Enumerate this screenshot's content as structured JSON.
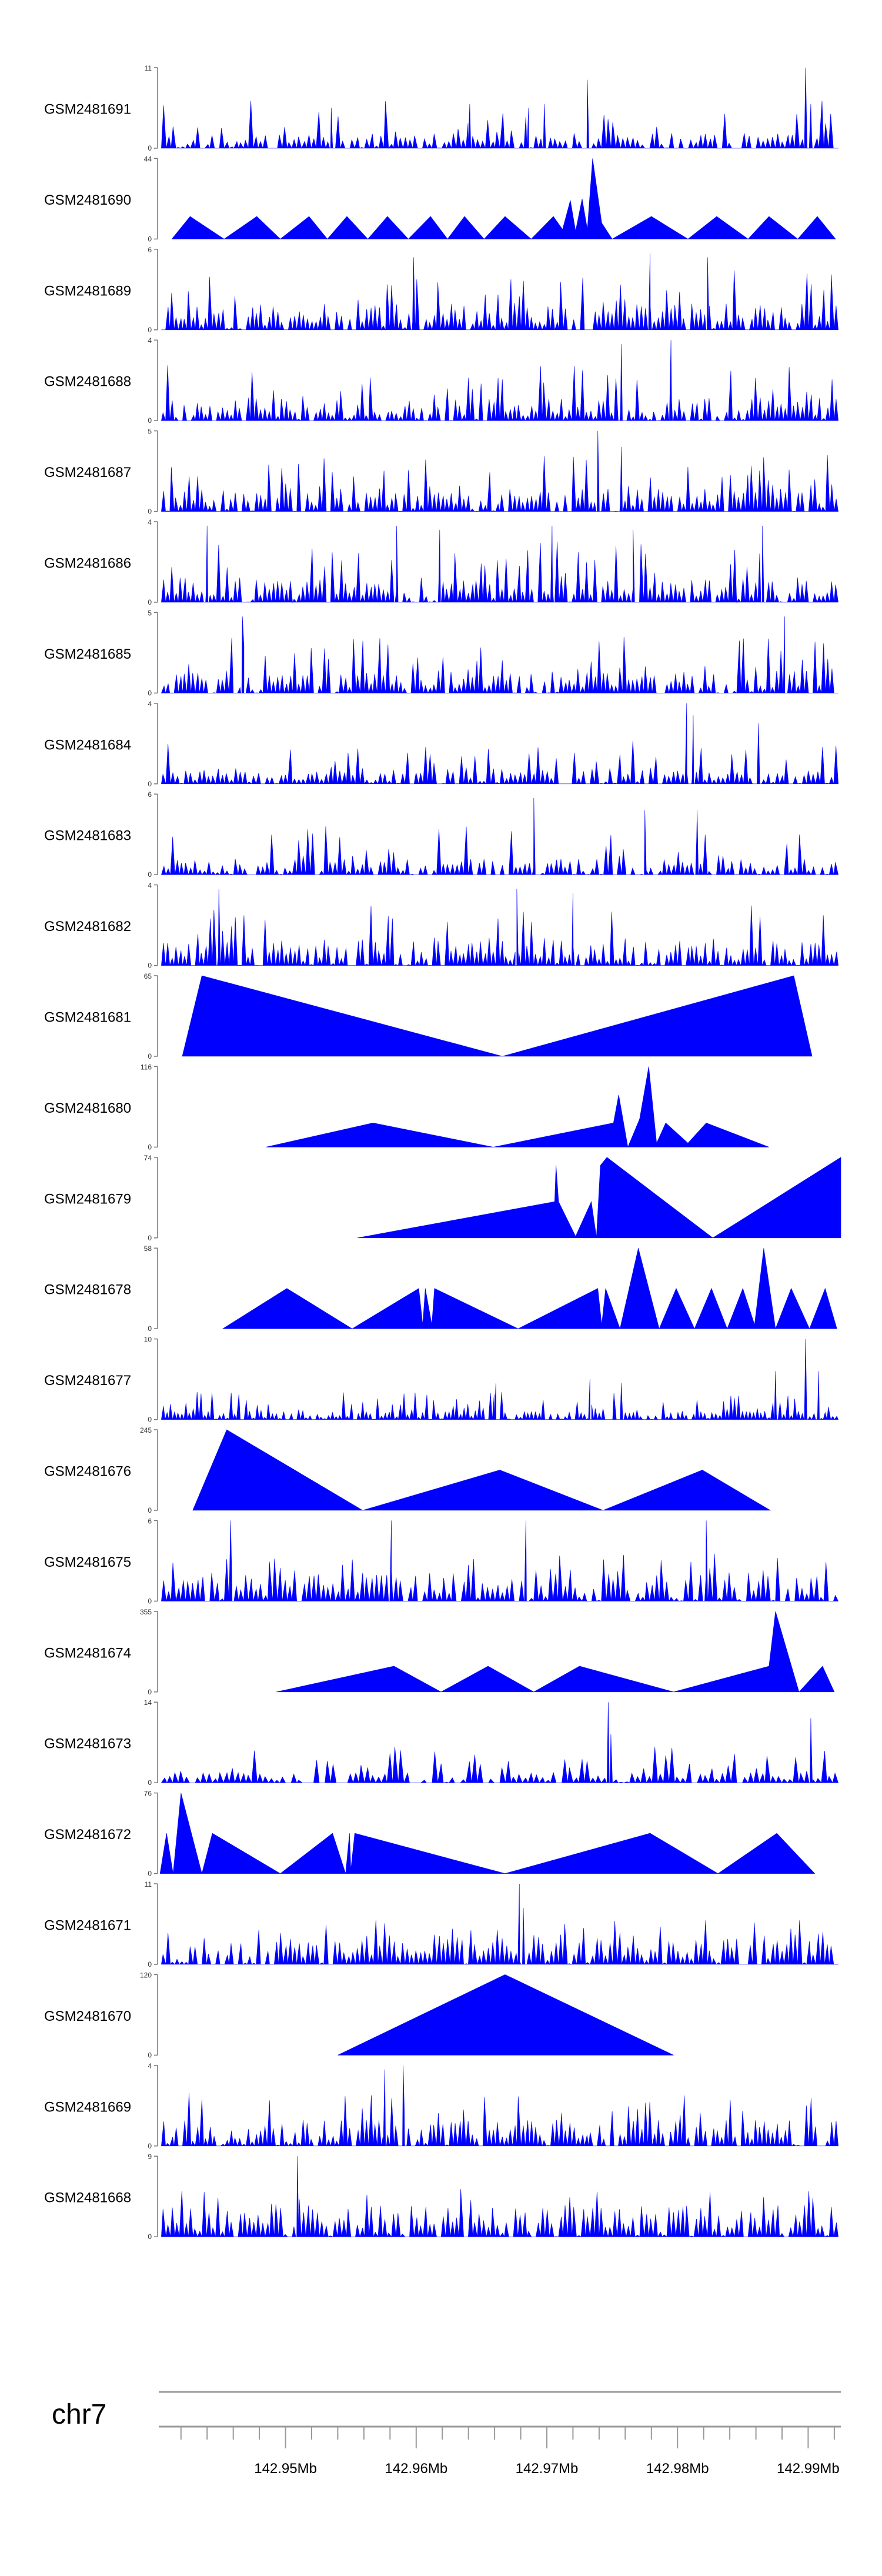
{
  "chart_data": {
    "type": "area",
    "title": "",
    "chromosome": "chr7",
    "xlabel": "",
    "ylabel": "",
    "x_unit": "Mb",
    "xlim": [
      142.9403,
      142.9925
    ],
    "x_ticks": [
      142.95,
      142.96,
      142.97,
      142.98,
      142.99
    ],
    "x_tick_labels": [
      "142.95Mb",
      "142.96Mb",
      "142.97Mb",
      "142.98Mb",
      "142.99Mb"
    ],
    "minor_tick_step": 0.002,
    "tracks": [
      {
        "name": "GSM2481691",
        "ymax": 11,
        "ymax_label": "11",
        "ymin_label": "0",
        "style": "dense",
        "seed": 11,
        "base": 0.15,
        "spike": 0.6,
        "count": 140,
        "peaks": [
          [
            142.9535,
            0.5
          ],
          [
            142.9641,
            0.55
          ],
          [
            142.9686,
            0.5
          ],
          [
            142.9698,
            0.55
          ],
          [
            142.9731,
            0.85
          ],
          [
            142.9898,
            1.0
          ],
          [
            142.9902,
            0.55
          ]
        ]
      },
      {
        "name": "GSM2481690",
        "ymax": 44,
        "ymax_label": "44",
        "ymin_label": "0",
        "style": "sparse",
        "points": [
          [
            142.9413,
            0
          ],
          [
            142.9427,
            0.28
          ],
          [
            142.9453,
            0
          ],
          [
            142.9478,
            0.28
          ],
          [
            142.9496,
            0
          ],
          [
            142.9518,
            0.28
          ],
          [
            142.9532,
            0
          ],
          [
            142.9547,
            0.28
          ],
          [
            142.9563,
            0
          ],
          [
            142.9578,
            0.28
          ],
          [
            142.9594,
            0
          ],
          [
            142.9611,
            0.28
          ],
          [
            142.9624,
            0
          ],
          [
            142.9637,
            0.28
          ],
          [
            142.9652,
            0
          ],
          [
            142.9668,
            0.28
          ],
          [
            142.9688,
            0
          ],
          [
            142.9705,
            0.28
          ],
          [
            142.9712,
            0.12
          ],
          [
            142.9718,
            0.48
          ],
          [
            142.9722,
            0.1
          ],
          [
            142.9727,
            0.5
          ],
          [
            142.9731,
            0.12
          ],
          [
            142.9735,
            1.0
          ],
          [
            142.9742,
            0.2
          ],
          [
            142.975,
            0
          ],
          [
            142.978,
            0.28
          ],
          [
            142.9808,
            0
          ],
          [
            142.983,
            0.28
          ],
          [
            142.9854,
            0
          ],
          [
            142.987,
            0.28
          ],
          [
            142.9892,
            0
          ],
          [
            142.9907,
            0.28
          ],
          [
            142.9921,
            0
          ]
        ]
      },
      {
        "name": "GSM2481689",
        "ymax": 6,
        "ymax_label": "6",
        "ymin_label": "0",
        "style": "dense",
        "seed": 89,
        "base": 0.25,
        "spike": 0.75,
        "count": 160,
        "peaks": [
          [
            142.9598,
            0.9
          ],
          [
            142.9779,
            0.95
          ],
          [
            142.9823,
            0.9
          ]
        ]
      },
      {
        "name": "GSM2481688",
        "ymax": 4,
        "ymax_label": "4",
        "ymin_label": "0",
        "style": "dense",
        "seed": 88,
        "base": 0.22,
        "spike": 0.7,
        "count": 160,
        "peaks": [
          [
            142.9757,
            0.95
          ],
          [
            142.9795,
            1.0
          ]
        ]
      },
      {
        "name": "GSM2481687",
        "ymax": 5,
        "ymax_label": "5",
        "ymin_label": "0",
        "style": "dense",
        "seed": 87,
        "base": 0.22,
        "spike": 0.7,
        "count": 160,
        "peaks": [
          [
            142.9739,
            1.0
          ],
          [
            142.9757,
            0.8
          ]
        ]
      },
      {
        "name": "GSM2481686",
        "ymax": 4,
        "ymax_label": "4",
        "ymin_label": "0",
        "style": "dense",
        "seed": 86,
        "base": 0.25,
        "spike": 0.75,
        "count": 160,
        "peaks": [
          [
            142.944,
            0.95
          ],
          [
            142.9585,
            0.95
          ],
          [
            142.9618,
            0.9
          ],
          [
            142.9704,
            0.95
          ],
          [
            142.9766,
            0.9
          ],
          [
            142.9865,
            0.95
          ]
        ]
      },
      {
        "name": "GSM2481685",
        "ymax": 5,
        "ymax_label": "5",
        "ymin_label": "0",
        "style": "dense",
        "seed": 85,
        "base": 0.22,
        "spike": 0.7,
        "count": 160,
        "peaks": [
          [
            142.9467,
            0.95
          ],
          [
            142.9882,
            0.95
          ]
        ]
      },
      {
        "name": "GSM2481684",
        "ymax": 4,
        "ymax_label": "4",
        "ymin_label": "0",
        "style": "dense",
        "seed": 84,
        "base": 0.15,
        "spike": 0.55,
        "count": 150,
        "peaks": [
          [
            142.9807,
            1.0
          ],
          [
            142.9812,
            0.85
          ],
          [
            142.9862,
            0.75
          ]
        ]
      },
      {
        "name": "GSM2481683",
        "ymax": 6,
        "ymax_label": "6",
        "ymin_label": "0",
        "style": "dense",
        "seed": 83,
        "base": 0.15,
        "spike": 0.6,
        "count": 150,
        "peaks": [
          [
            142.969,
            0.95
          ],
          [
            142.9775,
            0.8
          ],
          [
            142.9815,
            0.8
          ]
        ]
      },
      {
        "name": "GSM2481682",
        "ymax": 4,
        "ymax_label": "4",
        "ymin_label": "0",
        "style": "dense",
        "seed": 82,
        "base": 0.25,
        "spike": 0.75,
        "count": 160,
        "peaks": [
          [
            142.9449,
            0.95
          ],
          [
            142.9677,
            0.95
          ],
          [
            142.972,
            0.9
          ]
        ]
      },
      {
        "name": "GSM2481681",
        "ymax": 65,
        "ymax_label": "65",
        "ymin_label": "0",
        "style": "sparse",
        "points": [
          [
            142.9421,
            0
          ],
          [
            142.9436,
            1.0
          ],
          [
            142.9666,
            0
          ],
          [
            142.9889,
            1.0
          ],
          [
            142.9903,
            0
          ]
        ]
      },
      {
        "name": "GSM2481680",
        "ymax": 116,
        "ymax_label": "116",
        "ymin_label": "0",
        "style": "sparse",
        "points": [
          [
            142.9485,
            0
          ],
          [
            142.9567,
            0.3
          ],
          [
            142.9659,
            0
          ],
          [
            142.9751,
            0.3
          ],
          [
            142.9755,
            0.65
          ],
          [
            142.9762,
            0
          ],
          [
            142.9771,
            0.35
          ],
          [
            142.9778,
            1.0
          ],
          [
            142.9784,
            0.05
          ],
          [
            142.9791,
            0.3
          ],
          [
            142.9808,
            0.05
          ],
          [
            142.9822,
            0.3
          ],
          [
            142.987,
            0
          ]
        ]
      },
      {
        "name": "GSM2481679",
        "ymax": 74,
        "ymax_label": "74",
        "ymin_label": "0",
        "style": "sparse",
        "points": [
          [
            142.9555,
            0
          ],
          [
            142.9706,
            0.45
          ],
          [
            142.9707,
            0.9
          ],
          [
            142.9709,
            0.45
          ],
          [
            142.9722,
            0.02
          ],
          [
            142.9734,
            0.45
          ],
          [
            142.9738,
            0.01
          ],
          [
            142.9741,
            0.9
          ],
          [
            142.9746,
            1.0
          ],
          [
            142.9827,
            0
          ],
          [
            142.9925,
            1.0
          ]
        ]
      },
      {
        "name": "GSM2481678",
        "ymax": 58,
        "ymax_label": "58",
        "ymin_label": "0",
        "style": "sparse",
        "points": [
          [
            142.9452,
            0
          ],
          [
            142.9501,
            0.5
          ],
          [
            142.9551,
            0
          ],
          [
            142.9602,
            0.5
          ],
          [
            142.9605,
            0.05
          ],
          [
            142.9607,
            0.5
          ],
          [
            142.9612,
            0.05
          ],
          [
            142.9614,
            0.5
          ],
          [
            142.9678,
            0
          ],
          [
            142.9739,
            0.5
          ],
          [
            142.9742,
            0.05
          ],
          [
            142.9745,
            0.5
          ],
          [
            142.9756,
            0
          ],
          [
            142.977,
            1.0
          ],
          [
            142.9786,
            0
          ],
          [
            142.9799,
            0.5
          ],
          [
            142.9813,
            0
          ],
          [
            142.9826,
            0.5
          ],
          [
            142.9838,
            0
          ],
          [
            142.985,
            0.5
          ],
          [
            142.9859,
            0.05
          ],
          [
            142.9866,
            1.0
          ],
          [
            142.9875,
            0
          ],
          [
            142.9887,
            0.5
          ],
          [
            142.9901,
            0
          ],
          [
            142.9913,
            0.5
          ],
          [
            142.9922,
            0
          ]
        ]
      },
      {
        "name": "GSM2481677",
        "ymax": 10,
        "ymax_label": "10",
        "ymin_label": "0",
        "style": "dense",
        "seed": 77,
        "base": 0.08,
        "spike": 0.35,
        "count": 180,
        "peaks": [
          [
            142.9661,
            0.45
          ],
          [
            142.9733,
            0.5
          ],
          [
            142.9757,
            0.45
          ],
          [
            142.9875,
            0.6
          ],
          [
            142.9898,
            1.0
          ],
          [
            142.9908,
            0.6
          ]
        ]
      },
      {
        "name": "GSM2481676",
        "ymax": 245,
        "ymax_label": "245",
        "ymin_label": "0",
        "style": "sparse",
        "points": [
          [
            142.9429,
            0
          ],
          [
            142.9455,
            1.0
          ],
          [
            142.9559,
            0
          ],
          [
            142.9664,
            0.5
          ],
          [
            142.9743,
            0
          ],
          [
            142.9819,
            0.5
          ],
          [
            142.9871,
            0
          ]
        ]
      },
      {
        "name": "GSM2481675",
        "ymax": 6,
        "ymax_label": "6",
        "ymin_label": "0",
        "style": "dense",
        "seed": 75,
        "base": 0.3,
        "spike": 0.6,
        "count": 140,
        "peaks": [
          [
            142.9458,
            1.0
          ],
          [
            142.9581,
            1.0
          ],
          [
            142.9684,
            1.0
          ],
          [
            142.9822,
            1.0
          ]
        ]
      },
      {
        "name": "GSM2481674",
        "ymax": 355,
        "ymax_label": "355",
        "ymin_label": "0",
        "style": "sparse",
        "points": [
          [
            142.9493,
            0
          ],
          [
            142.9583,
            0.32
          ],
          [
            142.9619,
            0
          ],
          [
            142.9655,
            0.32
          ],
          [
            142.969,
            0
          ],
          [
            142.9725,
            0.32
          ],
          [
            142.9797,
            0
          ],
          [
            142.987,
            0.32
          ],
          [
            142.9875,
            1.0
          ],
          [
            142.9893,
            0
          ],
          [
            142.9911,
            0.32
          ],
          [
            142.992,
            0
          ]
        ]
      },
      {
        "name": "GSM2481673",
        "ymax": 14,
        "ymax_label": "14",
        "ymin_label": "0",
        "style": "dense",
        "seed": 73,
        "base": 0.1,
        "spike": 0.45,
        "count": 120,
        "peaks": [
          [
            142.9747,
            1.0
          ],
          [
            142.9749,
            0.6
          ],
          [
            142.9902,
            0.8
          ]
        ]
      },
      {
        "name": "GSM2481672",
        "ymax": 76,
        "ymax_label": "76",
        "ymin_label": "0",
        "style": "sparse",
        "points": [
          [
            142.9404,
            0
          ],
          [
            142.9409,
            0.5
          ],
          [
            142.9414,
            0
          ],
          [
            142.942,
            1.0
          ],
          [
            142.9436,
            0
          ],
          [
            142.9444,
            0.5
          ],
          [
            142.9496,
            0
          ],
          [
            142.9536,
            0.5
          ],
          [
            142.9546,
            0
          ],
          [
            142.9549,
            0.5
          ],
          [
            142.955,
            0.05
          ],
          [
            142.9553,
            0.5
          ],
          [
            142.9668,
            0
          ],
          [
            142.9779,
            0.5
          ],
          [
            142.9831,
            0
          ],
          [
            142.9876,
            0.5
          ],
          [
            142.9905,
            0
          ]
        ]
      },
      {
        "name": "GSM2481671",
        "ymax": 11,
        "ymax_label": "11",
        "ymin_label": "0",
        "style": "dense",
        "seed": 71,
        "base": 0.3,
        "spike": 0.55,
        "count": 150,
        "peaks": [
          [
            142.9679,
            1.0
          ],
          [
            142.9682,
            0.7
          ]
        ]
      },
      {
        "name": "GSM2481670",
        "ymax": 120,
        "ymax_label": "120",
        "ymin_label": "0",
        "style": "sparse",
        "points": [
          [
            142.954,
            0
          ],
          [
            142.9668,
            1.0
          ],
          [
            142.9797,
            0
          ]
        ]
      },
      {
        "name": "GSM2481669",
        "ymax": 4,
        "ymax_label": "4",
        "ymin_label": "0",
        "style": "dense",
        "seed": 69,
        "base": 0.25,
        "spike": 0.7,
        "count": 160,
        "peaks": [
          [
            142.9576,
            0.95
          ],
          [
            142.959,
            1.0
          ]
        ]
      },
      {
        "name": "GSM2481668",
        "ymax": 9,
        "ymax_label": "9",
        "ymin_label": "0",
        "style": "dense",
        "seed": 68,
        "base": 0.3,
        "spike": 0.6,
        "count": 150,
        "peaks": [
          [
            142.9509,
            1.0
          ]
        ]
      }
    ]
  }
}
